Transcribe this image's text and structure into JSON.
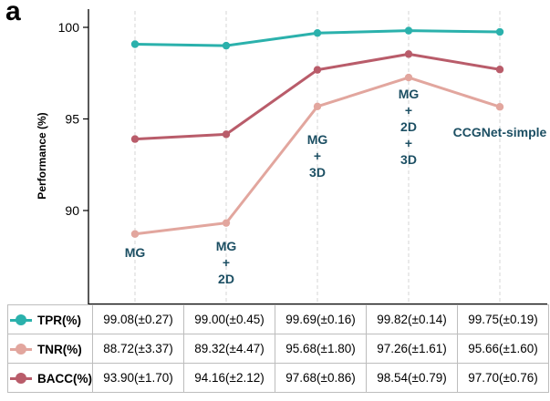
{
  "panel_letter": "a",
  "chart_data": {
    "type": "line",
    "ylabel": "Performance (%)",
    "xlabel": "",
    "ylim": [
      85,
      100
    ],
    "yticks": [
      90,
      95,
      100
    ],
    "grid": "vertical-dashed",
    "categories": [
      [
        "MG"
      ],
      [
        "MG",
        "+",
        "2D"
      ],
      [
        "MG",
        "+",
        "3D"
      ],
      [
        "MG",
        "+",
        "2D",
        "+",
        "3D"
      ],
      [
        "CCGNet-simple"
      ]
    ],
    "series": [
      {
        "name": "TPR(%)",
        "color": "#2bb1ac",
        "values": [
          99.08,
          99.0,
          99.69,
          99.82,
          99.75
        ],
        "labels": [
          "99.08(±0.27)",
          "99.00(±0.45)",
          "99.69(±0.16)",
          "99.82(±0.14)",
          "99.75(±0.19)"
        ]
      },
      {
        "name": "TNR(%)",
        "color": "#e2a69e",
        "values": [
          88.72,
          89.32,
          95.68,
          97.26,
          95.66
        ],
        "labels": [
          "88.72(±3.37)",
          "89.32(±4.47)",
          "95.68(±1.80)",
          "97.26(±1.61)",
          "95.66(±1.60)"
        ]
      },
      {
        "name": "BACC(%)",
        "color": "#b95c6a",
        "values": [
          93.9,
          94.16,
          97.68,
          98.54,
          97.7
        ],
        "labels": [
          "93.90(±1.70)",
          "94.16(±2.12)",
          "97.68(±0.86)",
          "98.54(±0.79)",
          "97.70(±0.76)"
        ]
      }
    ]
  }
}
